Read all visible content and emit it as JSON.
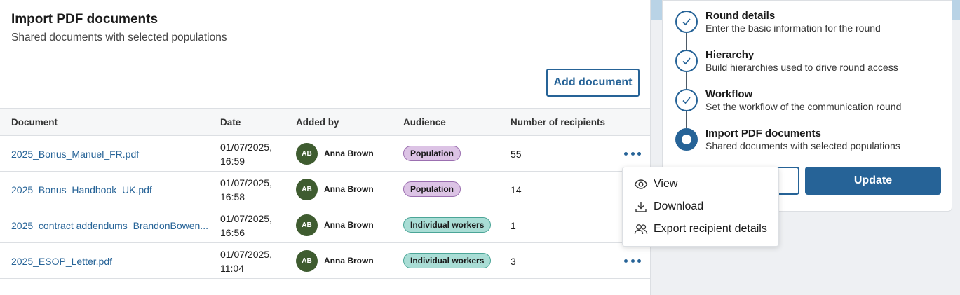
{
  "main": {
    "title": "Import PDF documents",
    "subtitle": "Shared documents with selected populations",
    "add_button": "Add document"
  },
  "table": {
    "headers": [
      "Document",
      "Date",
      "Added by",
      "Audience",
      "Number of recipients"
    ],
    "rows": [
      {
        "document": "2025_Bonus_Manuel_FR.pdf",
        "date_line1": "01/07/2025,",
        "date_line2": "16:59",
        "avatar": "AB",
        "added_by": "Anna Brown",
        "audience": "Population",
        "recipients": "55"
      },
      {
        "document": "2025_Bonus_Handbook_UK.pdf",
        "date_line1": "01/07/2025,",
        "date_line2": "16:58",
        "avatar": "AB",
        "added_by": "Anna Brown",
        "audience": "Population",
        "recipients": "14"
      },
      {
        "document": "2025_contract addendums_BrandonBowen...",
        "date_line1": "01/07/2025,",
        "date_line2": "16:56",
        "avatar": "AB",
        "added_by": "Anna Brown",
        "audience": "Individual workers",
        "recipients": "1"
      },
      {
        "document": "2025_ESOP_Letter.pdf",
        "date_line1": "01/07/2025,",
        "date_line2": "11:04",
        "avatar": "AB",
        "added_by": "Anna Brown",
        "audience": "Individual workers",
        "recipients": "3"
      }
    ]
  },
  "menu": {
    "items": [
      {
        "label": "View",
        "icon": "eye-icon"
      },
      {
        "label": "Download",
        "icon": "download-icon"
      },
      {
        "label": "Export recipient details",
        "icon": "users-icon"
      }
    ]
  },
  "steps": [
    {
      "title": "Round details",
      "desc": "Enter the basic information for the round",
      "state": "done"
    },
    {
      "title": "Hierarchy",
      "desc": "Build hierarchies used to drive round access",
      "state": "done"
    },
    {
      "title": "Workflow",
      "desc": "Set the workflow of the communication round",
      "state": "done"
    },
    {
      "title": "Import PDF documents",
      "desc": "Shared documents with selected populations",
      "state": "active"
    }
  ],
  "actions": {
    "update_label": "Update"
  },
  "colors": {
    "accent": "#266397",
    "population_badge": "#dcc3e5",
    "individual_badge": "#a9ddd5",
    "avatar": "#3f5c30"
  }
}
